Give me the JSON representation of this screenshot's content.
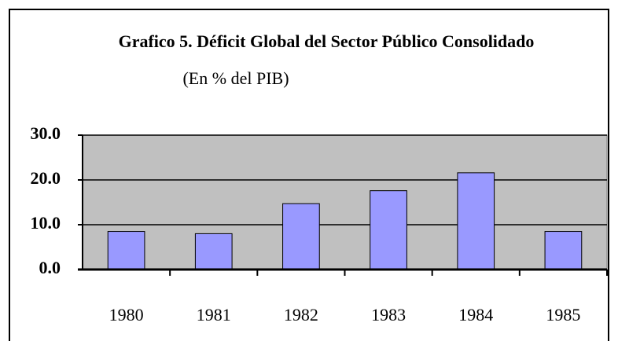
{
  "chart_data": {
    "type": "bar",
    "title": "Grafico 5. Déficit Global del Sector Público Consolidado",
    "subtitle": "(En % del PIB)",
    "categories": [
      "1980",
      "1981",
      "1982",
      "1983",
      "1984",
      "1985"
    ],
    "values": [
      8.5,
      8.0,
      14.7,
      17.6,
      21.6,
      8.5
    ],
    "color": "#9999ff",
    "ylim": [
      0,
      30
    ],
    "yticks": [
      {
        "value": 0,
        "label": "0.0"
      },
      {
        "value": 10,
        "label": "10.0"
      },
      {
        "value": 20,
        "label": "20.0"
      },
      {
        "value": 30,
        "label": "30.0"
      }
    ],
    "grid": true
  }
}
